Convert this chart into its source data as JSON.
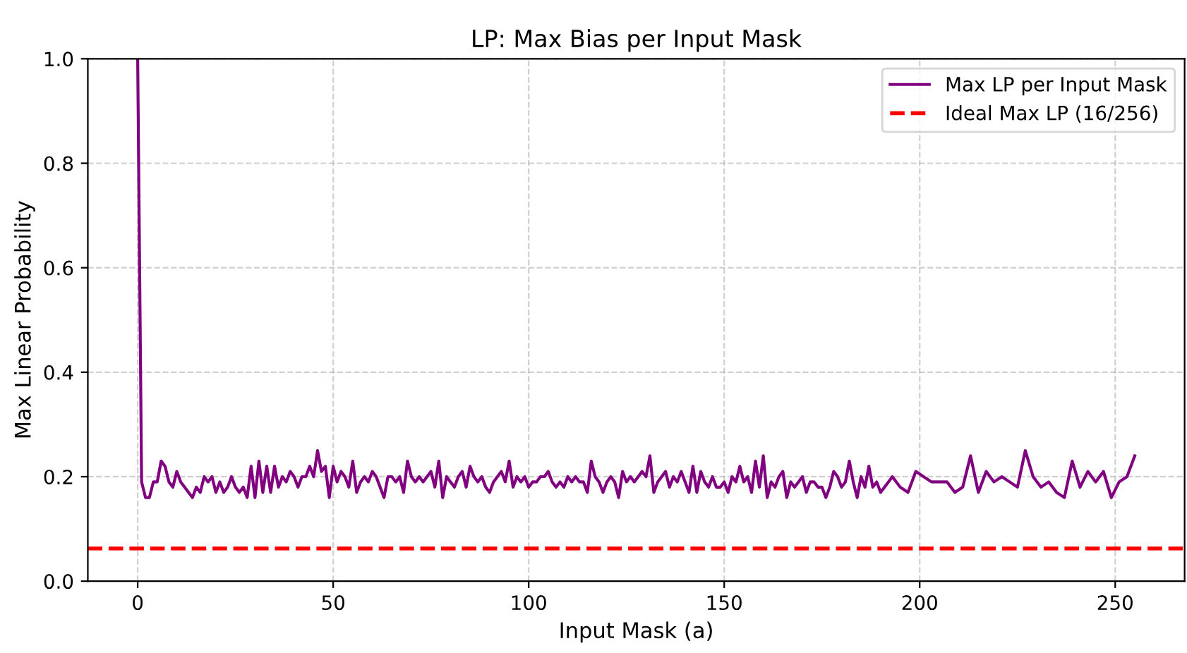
{
  "chart_data": {
    "type": "line",
    "title": "LP: Max Bias per Input Mask",
    "xlabel": "Input Mask (a)",
    "ylabel": "Max Linear Probability",
    "xlim": [
      -12.75,
      267.75
    ],
    "xticks": [
      0,
      50,
      100,
      150,
      200,
      250
    ],
    "ylim": [
      0,
      1
    ],
    "yticks": [
      {
        "value": 0,
        "label": "0.0"
      },
      0.2,
      0.4,
      0.6,
      0.8,
      {
        "value": 1,
        "label": "1.0"
      }
    ],
    "grid": true,
    "legend": "top right",
    "line_style": "solid",
    "marker": "none",
    "series": [
      {
        "name": "Max LP per Input Mask",
        "color": "#800080",
        "x": [
          0,
          1,
          2,
          3,
          4,
          5,
          6,
          7,
          8,
          9,
          10,
          11,
          12,
          13,
          14,
          15,
          16,
          17,
          18,
          19,
          20,
          21,
          22,
          23,
          24,
          25,
          26,
          27,
          28,
          29,
          30,
          31,
          32,
          33,
          34,
          35,
          36,
          37,
          38,
          39,
          40,
          41,
          42,
          43,
          44,
          45,
          46,
          47,
          48,
          49,
          50,
          51,
          52,
          53,
          54,
          55,
          56,
          57,
          58,
          59,
          60,
          61,
          62,
          63,
          64,
          65,
          66,
          67,
          68,
          69,
          70,
          71,
          72,
          73,
          74,
          75,
          76,
          77,
          78,
          79,
          80,
          81,
          82,
          83,
          84,
          85,
          86,
          87,
          88,
          89,
          90,
          91,
          92,
          93,
          94,
          95,
          96,
          97,
          98,
          99,
          100,
          101,
          102,
          103,
          104,
          105,
          106,
          107,
          108,
          109,
          110,
          111,
          112,
          113,
          114,
          115,
          116,
          117,
          118,
          119,
          120,
          121,
          122,
          123,
          124,
          125,
          126,
          127,
          128,
          129,
          130,
          131,
          132,
          133,
          134,
          135,
          136,
          137,
          138,
          139,
          140,
          141,
          142,
          143,
          144,
          145,
          146,
          147,
          148,
          149,
          150,
          151,
          152,
          153,
          154,
          155,
          156,
          157,
          158,
          159,
          160,
          161,
          162,
          163,
          164,
          165,
          166,
          167,
          168,
          169,
          170,
          171,
          172,
          173,
          174,
          175,
          176,
          177,
          178,
          179,
          180,
          181,
          182,
          183,
          184,
          185,
          186,
          187,
          188,
          189,
          190,
          191,
          192,
          193,
          195,
          197,
          199,
          201,
          203,
          205,
          207,
          209,
          211,
          213,
          215,
          217,
          219,
          221,
          223,
          225,
          227,
          229,
          231,
          233,
          235,
          237,
          239,
          241,
          243,
          245,
          247,
          249,
          251,
          253,
          255
        ],
        "values": [
          1.0,
          0.19,
          0.16,
          0.16,
          0.19,
          0.19,
          0.23,
          0.22,
          0.19,
          0.18,
          0.21,
          0.19,
          0.18,
          0.17,
          0.16,
          0.18,
          0.17,
          0.2,
          0.19,
          0.2,
          0.17,
          0.19,
          0.17,
          0.18,
          0.2,
          0.18,
          0.17,
          0.18,
          0.16,
          0.22,
          0.16,
          0.23,
          0.17,
          0.22,
          0.17,
          0.22,
          0.18,
          0.2,
          0.19,
          0.21,
          0.2,
          0.18,
          0.2,
          0.2,
          0.22,
          0.2,
          0.25,
          0.21,
          0.22,
          0.16,
          0.22,
          0.19,
          0.21,
          0.2,
          0.18,
          0.23,
          0.17,
          0.19,
          0.2,
          0.19,
          0.21,
          0.2,
          0.18,
          0.16,
          0.2,
          0.2,
          0.19,
          0.2,
          0.17,
          0.23,
          0.2,
          0.19,
          0.2,
          0.19,
          0.2,
          0.21,
          0.18,
          0.23,
          0.16,
          0.2,
          0.19,
          0.18,
          0.2,
          0.21,
          0.18,
          0.22,
          0.2,
          0.19,
          0.2,
          0.18,
          0.17,
          0.19,
          0.2,
          0.21,
          0.19,
          0.23,
          0.18,
          0.2,
          0.19,
          0.2,
          0.18,
          0.19,
          0.19,
          0.2,
          0.2,
          0.21,
          0.19,
          0.18,
          0.19,
          0.18,
          0.2,
          0.19,
          0.2,
          0.19,
          0.19,
          0.17,
          0.23,
          0.2,
          0.19,
          0.17,
          0.19,
          0.2,
          0.19,
          0.16,
          0.21,
          0.19,
          0.2,
          0.19,
          0.2,
          0.21,
          0.2,
          0.24,
          0.17,
          0.19,
          0.2,
          0.21,
          0.18,
          0.2,
          0.19,
          0.21,
          0.19,
          0.17,
          0.22,
          0.17,
          0.21,
          0.19,
          0.18,
          0.2,
          0.18,
          0.18,
          0.19,
          0.17,
          0.2,
          0.19,
          0.22,
          0.19,
          0.2,
          0.17,
          0.23,
          0.18,
          0.24,
          0.16,
          0.19,
          0.18,
          0.2,
          0.21,
          0.16,
          0.19,
          0.18,
          0.19,
          0.2,
          0.17,
          0.19,
          0.19,
          0.18,
          0.18,
          0.16,
          0.18,
          0.21,
          0.2,
          0.18,
          0.19,
          0.23,
          0.19,
          0.16,
          0.2,
          0.18,
          0.22,
          0.18,
          0.19,
          0.17,
          0.18,
          0.19,
          0.2,
          0.18,
          0.17,
          0.21,
          0.2,
          0.19,
          0.19,
          0.19,
          0.17,
          0.18,
          0.24,
          0.17,
          0.21,
          0.19,
          0.2,
          0.19,
          0.18,
          0.25,
          0.2,
          0.18,
          0.19,
          0.17,
          0.16,
          0.23,
          0.18,
          0.21,
          0.19,
          0.21,
          0.16,
          0.19,
          0.2,
          0.24
        ]
      }
    ],
    "ref_lines": [
      {
        "axis": "y",
        "value": 0.0625,
        "label": "Ideal Max LP (16/256)",
        "color": "#ff0000",
        "line_style": "dashed"
      }
    ]
  }
}
